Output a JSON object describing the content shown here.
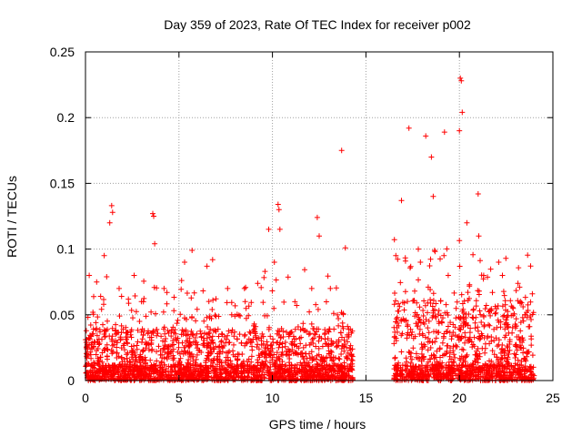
{
  "chart_data": {
    "type": "scatter",
    "title": "Day 359 of 2023, Rate Of TEC Index for receiver p002",
    "xlabel": "GPS time / hours",
    "ylabel": "ROTI / TECUs",
    "xlim": [
      0,
      25
    ],
    "ylim": [
      0,
      0.25
    ],
    "x_ticks": [
      0,
      5,
      10,
      15,
      20,
      25
    ],
    "x_tick_labels": [
      "0",
      "5",
      "10",
      "15",
      "20",
      "25"
    ],
    "y_ticks": [
      0,
      0.05,
      0.1,
      0.15,
      0.2,
      0.25
    ],
    "y_tick_labels": [
      "0",
      "0.05",
      "0.1",
      "0.15",
      "0.2",
      "0.25"
    ],
    "grid": true,
    "marker": "+",
    "color": "#ff0000",
    "coverage_segments": [
      [
        0.0,
        14.3
      ],
      [
        16.5,
        24.0
      ]
    ],
    "notable_points": [
      {
        "x": 0.2,
        "y": 0.08
      },
      {
        "x": 0.6,
        "y": 0.075
      },
      {
        "x": 1.0,
        "y": 0.095
      },
      {
        "x": 1.3,
        "y": 0.12
      },
      {
        "x": 1.4,
        "y": 0.133
      },
      {
        "x": 1.45,
        "y": 0.128
      },
      {
        "x": 1.8,
        "y": 0.07
      },
      {
        "x": 2.6,
        "y": 0.08
      },
      {
        "x": 3.1,
        "y": 0.06
      },
      {
        "x": 3.6,
        "y": 0.127
      },
      {
        "x": 3.65,
        "y": 0.125
      },
      {
        "x": 3.7,
        "y": 0.104
      },
      {
        "x": 4.2,
        "y": 0.07
      },
      {
        "x": 5.3,
        "y": 0.09
      },
      {
        "x": 5.7,
        "y": 0.099
      },
      {
        "x": 6.5,
        "y": 0.087
      },
      {
        "x": 6.8,
        "y": 0.092
      },
      {
        "x": 7.6,
        "y": 0.07
      },
      {
        "x": 8.5,
        "y": 0.07
      },
      {
        "x": 9.6,
        "y": 0.083
      },
      {
        "x": 9.8,
        "y": 0.115
      },
      {
        "x": 10.1,
        "y": 0.09
      },
      {
        "x": 10.3,
        "y": 0.134
      },
      {
        "x": 10.35,
        "y": 0.13
      },
      {
        "x": 10.4,
        "y": 0.115
      },
      {
        "x": 11.2,
        "y": 0.06
      },
      {
        "x": 12.1,
        "y": 0.07
      },
      {
        "x": 12.4,
        "y": 0.124
      },
      {
        "x": 12.5,
        "y": 0.11
      },
      {
        "x": 13.1,
        "y": 0.07
      },
      {
        "x": 13.7,
        "y": 0.175
      },
      {
        "x": 13.9,
        "y": 0.101
      },
      {
        "x": 16.6,
        "y": 0.095
      },
      {
        "x": 16.9,
        "y": 0.137
      },
      {
        "x": 17.3,
        "y": 0.192
      },
      {
        "x": 17.8,
        "y": 0.1
      },
      {
        "x": 18.2,
        "y": 0.186
      },
      {
        "x": 18.5,
        "y": 0.17
      },
      {
        "x": 18.6,
        "y": 0.14
      },
      {
        "x": 19.2,
        "y": 0.189
      },
      {
        "x": 19.4,
        "y": 0.08
      },
      {
        "x": 20.0,
        "y": 0.19
      },
      {
        "x": 20.05,
        "y": 0.23
      },
      {
        "x": 20.1,
        "y": 0.228
      },
      {
        "x": 20.15,
        "y": 0.204
      },
      {
        "x": 20.4,
        "y": 0.12
      },
      {
        "x": 21.0,
        "y": 0.142
      },
      {
        "x": 21.3,
        "y": 0.08
      },
      {
        "x": 22.1,
        "y": 0.09
      },
      {
        "x": 22.3,
        "y": 0.08
      },
      {
        "x": 23.0,
        "y": 0.04
      },
      {
        "x": 23.5,
        "y": 0.05
      },
      {
        "x": 23.9,
        "y": 0.066
      }
    ]
  }
}
